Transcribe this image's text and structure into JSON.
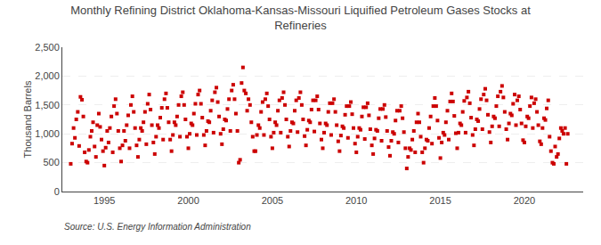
{
  "chart_data": {
    "type": "scatter",
    "title": "Monthly Refining District Oklahoma-Kansas-Missouri Liquified Petroleum Gases Stocks at\nRefineries",
    "ylabel": "Thousand Barrels",
    "annotations": [
      "Source: U.S. Energy Information Administration"
    ],
    "color": "#cc0000",
    "marker": "square",
    "grid": "y",
    "xlim": [
      1992.5,
      2023.5
    ],
    "ylim": [
      0,
      2500
    ],
    "xticks": [
      1995,
      2000,
      2005,
      2010,
      2015,
      2020
    ],
    "yticks": [
      0,
      500,
      {
        "value": 1000,
        "label": "1,000"
      },
      {
        "value": 1500,
        "label": "1,500"
      },
      {
        "value": 2000,
        "label": "2,000"
      },
      {
        "value": 2500,
        "label": "2,500"
      }
    ],
    "x": [
      1993.0,
      1993.08,
      1993.17,
      1993.25,
      1993.33,
      1993.42,
      1993.5,
      1993.58,
      1993.67,
      1993.75,
      1993.83,
      1993.92,
      1994.0,
      1994.08,
      1994.17,
      1994.25,
      1994.33,
      1994.42,
      1994.5,
      1994.58,
      1994.67,
      1994.75,
      1994.83,
      1994.92,
      1995.0,
      1995.08,
      1995.17,
      1995.25,
      1995.33,
      1995.42,
      1995.5,
      1995.58,
      1995.67,
      1995.75,
      1995.83,
      1995.92,
      1996.0,
      1996.08,
      1996.17,
      1996.25,
      1996.33,
      1996.42,
      1996.5,
      1996.58,
      1996.67,
      1996.75,
      1996.83,
      1996.92,
      1997.0,
      1997.08,
      1997.17,
      1997.25,
      1997.33,
      1997.42,
      1997.5,
      1997.58,
      1997.67,
      1997.75,
      1997.83,
      1997.92,
      1998.0,
      1998.08,
      1998.17,
      1998.25,
      1998.33,
      1998.42,
      1998.5,
      1998.58,
      1998.67,
      1998.75,
      1998.83,
      1998.92,
      1999.0,
      1999.08,
      1999.17,
      1999.25,
      1999.33,
      1999.42,
      1999.5,
      1999.58,
      1999.67,
      1999.75,
      1999.83,
      1999.92,
      2000.0,
      2000.08,
      2000.17,
      2000.25,
      2000.33,
      2000.42,
      2000.5,
      2000.58,
      2000.67,
      2000.75,
      2000.83,
      2000.92,
      2001.0,
      2001.08,
      2001.17,
      2001.25,
      2001.33,
      2001.42,
      2001.5,
      2001.58,
      2001.67,
      2001.75,
      2001.83,
      2001.92,
      2002.0,
      2002.08,
      2002.17,
      2002.25,
      2002.33,
      2002.42,
      2002.5,
      2002.58,
      2002.67,
      2002.75,
      2002.83,
      2002.92,
      2003.0,
      2003.08,
      2003.17,
      2003.25,
      2003.33,
      2003.42,
      2003.5,
      2003.58,
      2003.67,
      2003.75,
      2003.83,
      2003.92,
      2004.0,
      2004.08,
      2004.17,
      2004.25,
      2004.33,
      2004.42,
      2004.5,
      2004.58,
      2004.67,
      2004.75,
      2004.83,
      2004.92,
      2005.0,
      2005.08,
      2005.17,
      2005.25,
      2005.33,
      2005.42,
      2005.5,
      2005.58,
      2005.67,
      2005.75,
      2005.83,
      2005.92,
      2006.0,
      2006.08,
      2006.17,
      2006.25,
      2006.33,
      2006.42,
      2006.5,
      2006.58,
      2006.67,
      2006.75,
      2006.83,
      2006.92,
      2007.0,
      2007.08,
      2007.17,
      2007.25,
      2007.33,
      2007.42,
      2007.5,
      2007.58,
      2007.67,
      2007.75,
      2007.83,
      2007.92,
      2008.0,
      2008.08,
      2008.17,
      2008.25,
      2008.33,
      2008.42,
      2008.5,
      2008.58,
      2008.67,
      2008.75,
      2008.83,
      2008.92,
      2009.0,
      2009.08,
      2009.17,
      2009.25,
      2009.33,
      2009.42,
      2009.5,
      2009.58,
      2009.67,
      2009.75,
      2009.83,
      2009.92,
      2010.0,
      2010.08,
      2010.17,
      2010.25,
      2010.33,
      2010.42,
      2010.5,
      2010.58,
      2010.67,
      2010.75,
      2010.83,
      2010.92,
      2011.0,
      2011.08,
      2011.17,
      2011.25,
      2011.33,
      2011.42,
      2011.5,
      2011.58,
      2011.67,
      2011.75,
      2011.83,
      2011.92,
      2012.0,
      2012.08,
      2012.17,
      2012.25,
      2012.33,
      2012.42,
      2012.5,
      2012.58,
      2012.67,
      2012.75,
      2012.83,
      2012.92,
      2013.0,
      2013.08,
      2013.17,
      2013.25,
      2013.33,
      2013.42,
      2013.5,
      2013.58,
      2013.67,
      2013.75,
      2013.83,
      2013.92,
      2014.0,
      2014.08,
      2014.17,
      2014.25,
      2014.33,
      2014.42,
      2014.5,
      2014.58,
      2014.67,
      2014.75,
      2014.83,
      2014.92,
      2015.0,
      2015.08,
      2015.17,
      2015.25,
      2015.33,
      2015.42,
      2015.5,
      2015.58,
      2015.67,
      2015.75,
      2015.83,
      2015.92,
      2016.0,
      2016.08,
      2016.17,
      2016.25,
      2016.33,
      2016.42,
      2016.5,
      2016.58,
      2016.67,
      2016.75,
      2016.83,
      2016.92,
      2017.0,
      2017.08,
      2017.17,
      2017.25,
      2017.33,
      2017.42,
      2017.5,
      2017.58,
      2017.67,
      2017.75,
      2017.83,
      2017.92,
      2018.0,
      2018.08,
      2018.17,
      2018.25,
      2018.33,
      2018.42,
      2018.5,
      2018.58,
      2018.67,
      2018.75,
      2018.83,
      2018.92,
      2019.0,
      2019.08,
      2019.17,
      2019.25,
      2019.33,
      2019.42,
      2019.5,
      2019.58,
      2019.67,
      2019.75,
      2019.83,
      2019.92,
      2020.0,
      2020.08,
      2020.17,
      2020.25,
      2020.33,
      2020.42,
      2020.5,
      2020.58,
      2020.67,
      2020.75,
      2020.83,
      2020.92,
      2021.0,
      2021.08,
      2021.17,
      2021.25,
      2021.33,
      2021.42,
      2021.5,
      2021.58,
      2021.67,
      2021.75,
      2021.83,
      2021.92,
      2022.0,
      2022.08,
      2022.17,
      2022.25,
      2022.33,
      2022.42,
      2022.5,
      2022.58
    ],
    "values": [
      480,
      830,
      1100,
      930,
      1250,
      1380,
      790,
      1640,
      1590,
      1300,
      680,
      520,
      500,
      720,
      950,
      1050,
      1200,
      780,
      600,
      1150,
      1350,
      1120,
      900,
      700,
      450,
      760,
      1050,
      850,
      1100,
      1300,
      680,
      1480,
      1600,
      1350,
      1050,
      750,
      520,
      800,
      1050,
      880,
      1150,
      1320,
      750,
      1500,
      1650,
      1380,
      1100,
      800,
      600,
      900,
      1100,
      1050,
      1200,
      1380,
      820,
      1520,
      1680,
      1420,
      1150,
      850,
      650,
      950,
      1150,
      1100,
      1280,
      1450,
      900,
      1600,
      1700,
      1450,
      1200,
      900,
      700,
      980,
      1200,
      1150,
      1300,
      1500,
      950,
      1650,
      1720,
      1500,
      1250,
      950,
      750,
      1000,
      1180,
      1150,
      1350,
      1520,
      980,
      1680,
      1750,
      1520,
      1280,
      980,
      800,
      1050,
      1220,
      1200,
      1400,
      1580,
      1020,
      1720,
      1800,
      1550,
      1300,
      1000,
      820,
      1080,
      1250,
      1230,
      1430,
      1600,
      1050,
      1750,
      1850,
      1600,
      1350,
      1050,
      500,
      550,
      1880,
      2150,
      1750,
      1700,
      1400,
      1600,
      1500,
      1200,
      950,
      700,
      700,
      980,
      1150,
      1100,
      1380,
      1550,
      980,
      1600,
      1700,
      1480,
      1250,
      950,
      750,
      1020,
      1200,
      1150,
      1400,
      1580,
      1020,
      1620,
      1720,
      1500,
      1250,
      950,
      780,
      1050,
      1200,
      1180,
      1400,
      1580,
      1030,
      1620,
      1720,
      1500,
      1250,
      960,
      800,
      1070,
      1230,
      1200,
      1420,
      1580,
      1040,
      1580,
      1650,
      1420,
      1180,
      900,
      750,
      1020,
      1180,
      1150,
      1380,
      1530,
      980,
      1530,
      1600,
      1380,
      1150,
      870,
      700,
      970,
      1130,
      1100,
      1330,
      1480,
      930,
      1480,
      1550,
      1340,
      1100,
      830,
      680,
      950,
      1100,
      1070,
      1300,
      1460,
      910,
      1460,
      1530,
      1320,
      1080,
      800,
      650,
      920,
      1070,
      1050,
      1270,
      1430,
      880,
      1430,
      1500,
      1290,
      1050,
      770,
      620,
      880,
      1030,
      1000,
      1230,
      1400,
      850,
      1400,
      1480,
      1270,
      1030,
      750,
      400,
      600,
      750,
      720,
      900,
      1050,
      680,
      1200,
      1350,
      1200,
      950,
      680,
      500,
      750,
      900,
      880,
      1100,
      1300,
      830,
      1480,
      1620,
      1480,
      1230,
      930,
      580,
      850,
      1020,
      980,
      1200,
      1400,
      900,
      1560,
      1700,
      1560,
      1310,
      1010,
      750,
      1020,
      1180,
      1150,
      1380,
      1570,
      1020,
      1630,
      1730,
      1530,
      1280,
      980,
      800,
      1080,
      1250,
      1220,
      1430,
      1600,
      1080,
      1680,
      1780,
      1580,
      1330,
      1030,
      850,
      1130,
      1300,
      1270,
      1480,
      1650,
      1130,
      1730,
      1830,
      1630,
      1380,
      1080,
      900,
      1180,
      1350,
      1320,
      1520,
      1680,
      1150,
      1580,
      1650,
      1420,
      1180,
      890,
      850,
      1130,
      1300,
      1270,
      1480,
      1630,
      1100,
      1530,
      1600,
      1380,
      1150,
      870,
      820,
      1100,
      1270,
      1240,
      1440,
      1580,
      950,
      700,
      500,
      480,
      780,
      600,
      650,
      920,
      1100,
      1050,
      1000,
      1100,
      480,
      1000
    ]
  }
}
